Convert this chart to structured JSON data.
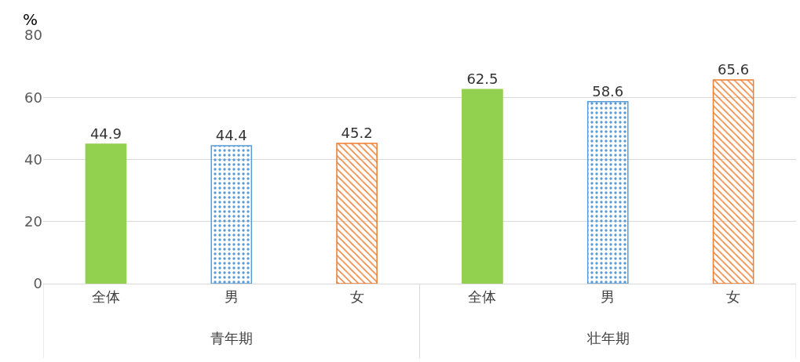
{
  "chart_data": {
    "type": "bar",
    "ylabel": "%",
    "categories": [
      "全体",
      "男",
      "女",
      "全体",
      "男",
      "女"
    ],
    "values": [
      44.9,
      44.4,
      45.2,
      62.5,
      58.6,
      65.6
    ],
    "colors": [
      "#92d050",
      "#5b9bd5",
      "#ed7d31",
      "#92d050",
      "#5b9bd5",
      "#ed7d31"
    ],
    "annotations": [
      "青年期",
      "壮年期"
    ],
    "ylim": [
      0,
      80
    ],
    "yticks": [
      0,
      20,
      40,
      60,
      80
    ],
    "grid": "y",
    "data_labels": true
  }
}
